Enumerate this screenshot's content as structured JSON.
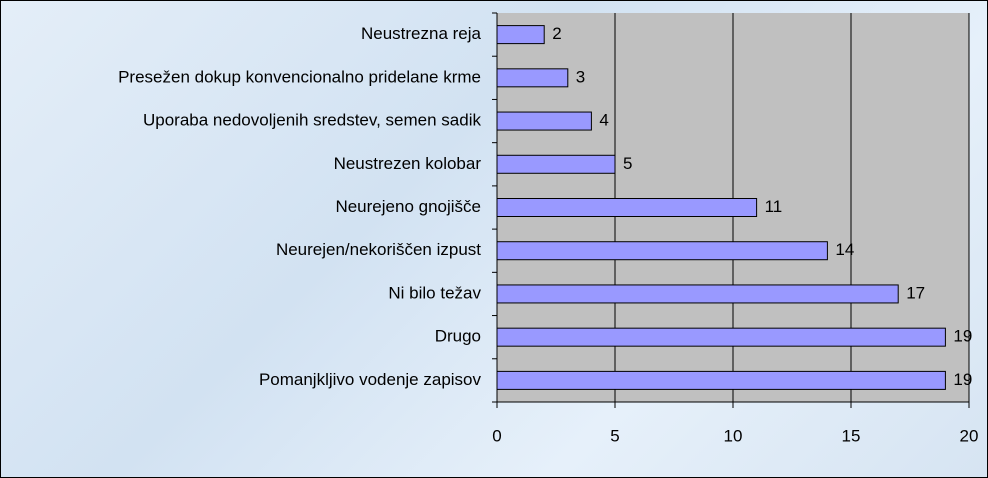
{
  "chart_data": {
    "type": "bar",
    "orientation": "horizontal",
    "categories": [
      "Neustrezna reja",
      "Presežen dokup konvencionalno pridelane krme",
      "Uporaba nedovoljenih sredstev, semen sadik",
      "Neustrezen kolobar",
      "Neurejeno gnojišče",
      "Neurejen/nekoriščen izpust",
      "Ni bilo težav",
      "Drugo",
      "Pomanjkljivo vodenje zapisov"
    ],
    "values": [
      2,
      3,
      4,
      5,
      11,
      14,
      17,
      19,
      19
    ],
    "color": "#9999ff",
    "xlim": [
      0,
      20
    ],
    "xticks": [
      0,
      5,
      10,
      15,
      20
    ],
    "grid": true
  }
}
